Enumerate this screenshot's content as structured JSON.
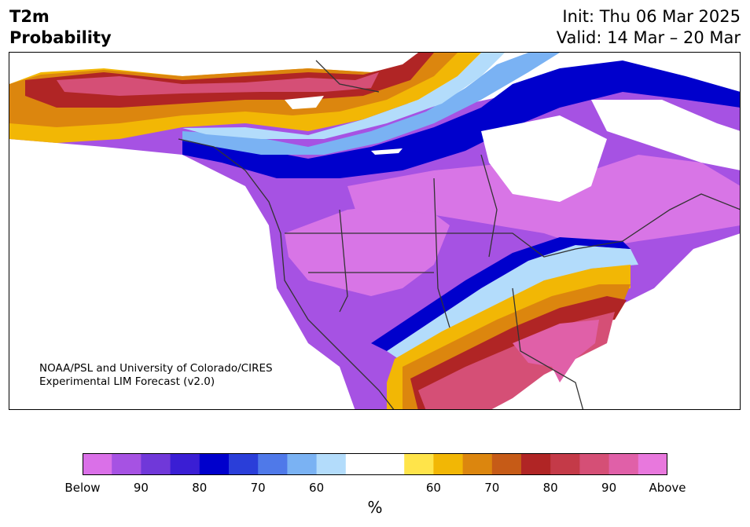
{
  "header": {
    "variable": "T2m",
    "product": "Probability",
    "init": "Init: Thu 06 Mar 2025",
    "valid": "Valid: 14 Mar – 20 Mar"
  },
  "credit": {
    "line1": "NOAA/PSL and University of Colorado/CIRES",
    "line2": "Experimental LIM Forecast (v2.0)"
  },
  "colorbar": {
    "colors": [
      "#da70e8",
      "#a652e3",
      "#7038d9",
      "#3a1ed4",
      "#0000cc",
      "#2a3ed9",
      "#4f79e9",
      "#7ab2f3",
      "#b3dcfb",
      "#ffffff",
      "#ffffff",
      "#ffe44a",
      "#f2b705",
      "#dc860e",
      "#c65b17",
      "#b02525",
      "#c43a48",
      "#d54f76",
      "#e060a8",
      "#e878dd"
    ],
    "tick_labels": [
      "Below",
      "90",
      "80",
      "70",
      "60",
      "60",
      "70",
      "80",
      "90",
      "Above"
    ],
    "unit": "%"
  },
  "map": {
    "region": "North America",
    "colors": {
      "deep_purple": "#a652e3",
      "light_purple": "#d875e6",
      "violet": "#7038d9",
      "blue": "#0000cc",
      "mid_blue": "#4f79e9",
      "light_blue": "#7ab2f3",
      "pale_blue": "#b3dcfb",
      "yellow": "#f2b705",
      "orange": "#dc860e",
      "red": "#b02525",
      "crimson": "#c43a48",
      "pink": "#d54f76",
      "magenta": "#e060a8",
      "outline": "#333333"
    }
  }
}
